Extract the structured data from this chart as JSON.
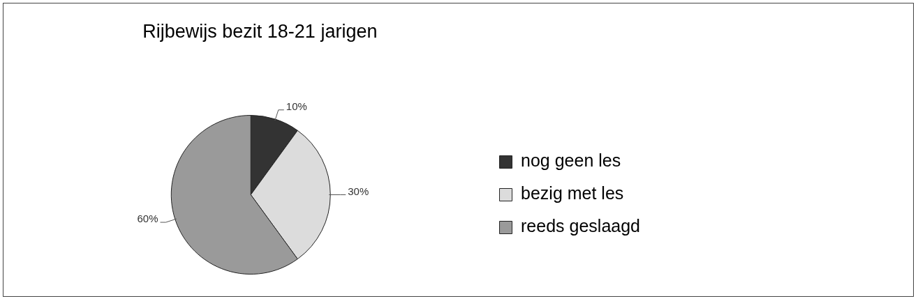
{
  "chart_data": {
    "type": "pie",
    "title": "Rijbewijs bezit 18-21 jarigen",
    "categories": [
      "nog geen les",
      "bezig met les",
      "reeds geslaagd"
    ],
    "values": [
      10,
      30,
      60
    ],
    "colors": [
      "#333333",
      "#dcdcdc",
      "#9a9a9a"
    ],
    "value_labels": [
      "10%",
      "30%",
      "60%"
    ],
    "legend": "right"
  }
}
